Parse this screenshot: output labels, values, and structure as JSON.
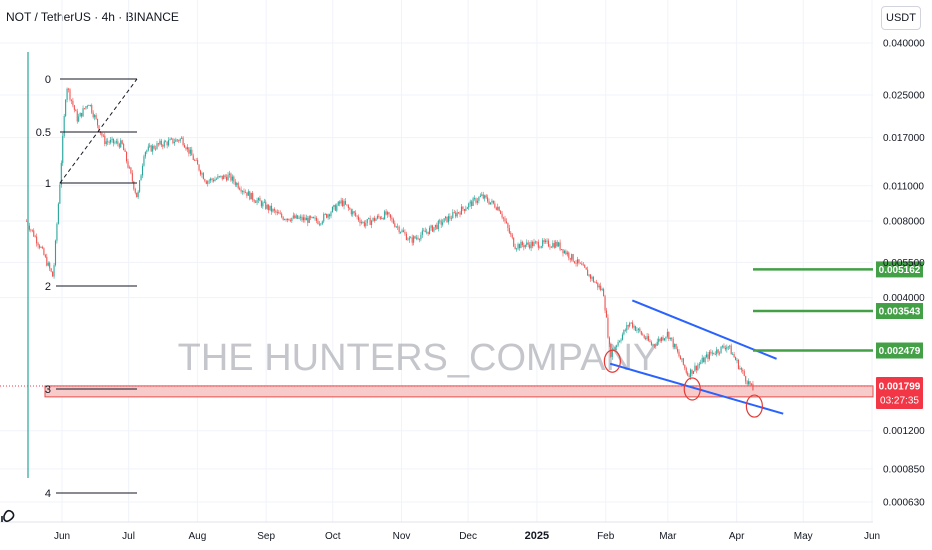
{
  "header": {
    "title": "NOT / TetherUS · 4h · BINANCE",
    "unit_label": "USDT"
  },
  "watermark": "THE HUNTERS_COMPANY",
  "colors": {
    "up": "#26a69a",
    "down": "#ef5350",
    "target": "#43a047",
    "trend": "#2962ff",
    "support_fill": "#f8c6c6",
    "support_border": "#e53935",
    "price_tag": "#f23645"
  },
  "chart_data": {
    "type": "candlestick",
    "symbol": "NOT / TetherUS",
    "timeframe": "4h",
    "exchange": "BINANCE",
    "y_scale": "log",
    "y_ticks": [
      "0.040000",
      "0.025000",
      "0.017000",
      "0.011000",
      "0.008000",
      "0.005500",
      "0.004000",
      "0.001200",
      "0.000850",
      "0.000630"
    ],
    "x_ticks": [
      "Jun",
      "Jul",
      "Aug",
      "Sep",
      "Oct",
      "Nov",
      "Dec",
      "2025",
      "Feb",
      "Mar",
      "Apr",
      "May",
      "Jun"
    ],
    "x_ticks_bold": [
      "2025"
    ],
    "price_path": [
      [
        "2024-05-16",
        0.008
      ],
      [
        "2024-05-22",
        0.0064
      ],
      [
        "2024-05-28",
        0.0048
      ],
      [
        "2024-05-31",
        0.0112
      ],
      [
        "2024-06-03",
        0.0275
      ],
      [
        "2024-06-08",
        0.02
      ],
      [
        "2024-06-13",
        0.0235
      ],
      [
        "2024-06-20",
        0.0165
      ],
      [
        "2024-06-28",
        0.016
      ],
      [
        "2024-07-05",
        0.0098
      ],
      [
        "2024-07-08",
        0.015
      ],
      [
        "2024-07-15",
        0.016
      ],
      [
        "2024-07-25",
        0.0168
      ],
      [
        "2024-08-05",
        0.0115
      ],
      [
        "2024-08-15",
        0.012
      ],
      [
        "2024-08-25",
        0.01
      ],
      [
        "2024-09-08",
        0.0083
      ],
      [
        "2024-09-25",
        0.008
      ],
      [
        "2024-10-05",
        0.0095
      ],
      [
        "2024-10-15",
        0.0078
      ],
      [
        "2024-10-25",
        0.0085
      ],
      [
        "2024-11-05",
        0.0067
      ],
      [
        "2024-11-15",
        0.0075
      ],
      [
        "2024-11-25",
        0.0085
      ],
      [
        "2024-12-07",
        0.01
      ],
      [
        "2024-12-15",
        0.009
      ],
      [
        "2024-12-22",
        0.0064
      ],
      [
        "2024-12-31",
        0.0065
      ],
      [
        "2025-01-10",
        0.0065
      ],
      [
        "2025-01-22",
        0.0052
      ],
      [
        "2025-01-31",
        0.0042
      ],
      [
        "2025-02-03",
        0.0024
      ],
      [
        "2025-02-12",
        0.0032
      ],
      [
        "2025-02-22",
        0.0026
      ],
      [
        "2025-03-01",
        0.0029
      ],
      [
        "2025-03-10",
        0.002
      ],
      [
        "2025-03-20",
        0.0024
      ],
      [
        "2025-03-28",
        0.0026
      ],
      [
        "2025-04-04",
        0.002
      ],
      [
        "2025-04-09",
        0.0017
      ]
    ],
    "last_price": "0.001799",
    "countdown": "03:27:35",
    "target_levels": [
      "0.005162",
      "0.003543",
      "0.002479"
    ],
    "fibonacci_levels": [
      "0",
      "0.5",
      "1",
      "2",
      "3",
      "4"
    ],
    "support_zone": [
      0.00163,
      0.0018
    ],
    "falling_wedge": {
      "upper": [
        [
          "2025-02-13",
          0.0039
        ],
        [
          "2025-04-19",
          0.0023
        ]
      ],
      "lower": [
        [
          "2025-02-03",
          0.0022
        ],
        [
          "2025-04-22",
          0.0014
        ]
      ]
    },
    "touch_points": [
      [
        "2025-02-04",
        0.00225
      ],
      [
        "2025-03-12",
        0.00175
      ],
      [
        "2025-04-09",
        0.0015
      ]
    ]
  }
}
